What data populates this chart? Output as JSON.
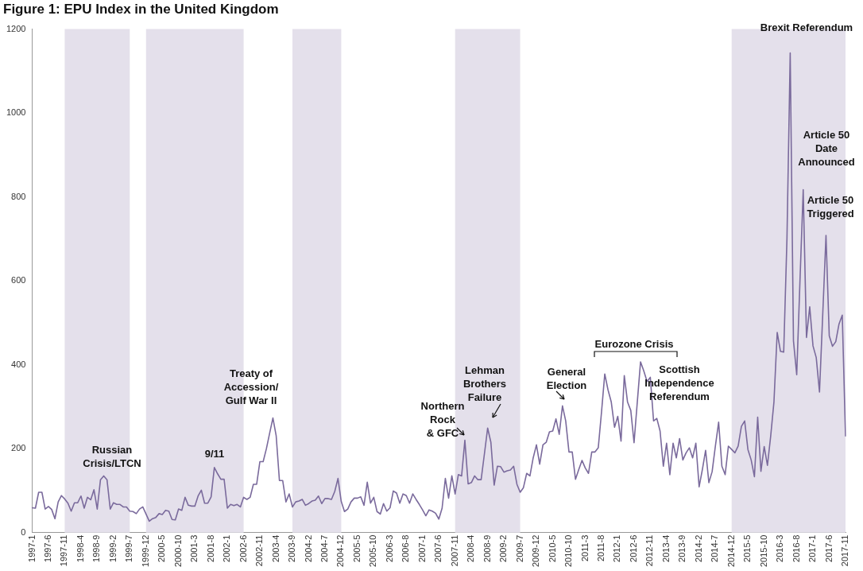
{
  "chart_data": {
    "type": "line",
    "title": "Figure 1: EPU Index in the United Kingdom",
    "categories": [
      "1997-1",
      null,
      null,
      null,
      null,
      "1997-6",
      null,
      null,
      null,
      null,
      "1997-11",
      null,
      null,
      null,
      null,
      "1998-4",
      null,
      null,
      null,
      null,
      "1998-9",
      null,
      null,
      null,
      null,
      "1999-2",
      null,
      null,
      null,
      null,
      "1999-7",
      null,
      null,
      null,
      null,
      "1999-12",
      null,
      null,
      null,
      null,
      "2000-5",
      null,
      null,
      null,
      null,
      "2000-10",
      null,
      null,
      null,
      null,
      "2001-3",
      null,
      null,
      null,
      null,
      "2001-8",
      null,
      null,
      null,
      null,
      "2002-1",
      null,
      null,
      null,
      null,
      "2002-6",
      null,
      null,
      null,
      null,
      "2002-11",
      null,
      null,
      null,
      null,
      "2003-4",
      null,
      null,
      null,
      null,
      "2003-9",
      null,
      null,
      null,
      null,
      "2004-2",
      null,
      null,
      null,
      null,
      "2004-7",
      null,
      null,
      null,
      null,
      "2004-12",
      null,
      null,
      null,
      null,
      "2005-5",
      null,
      null,
      null,
      null,
      "2005-10",
      null,
      null,
      null,
      null,
      "2006-3",
      null,
      null,
      null,
      null,
      "2006-8",
      null,
      null,
      null,
      null,
      "2007-1",
      null,
      null,
      null,
      null,
      "2007-6",
      null,
      null,
      null,
      null,
      "2007-11",
      null,
      null,
      null,
      null,
      "2008-4",
      null,
      null,
      null,
      null,
      "2008-9",
      null,
      null,
      null,
      null,
      "2009-2",
      null,
      null,
      null,
      null,
      "2009-7",
      null,
      null,
      null,
      null,
      "2009-12",
      null,
      null,
      null,
      null,
      "2010-5",
      null,
      null,
      null,
      null,
      "2010-10",
      null,
      null,
      null,
      null,
      "2011-3",
      null,
      null,
      null,
      null,
      "2011-8",
      null,
      null,
      null,
      null,
      "2012-1",
      null,
      null,
      null,
      null,
      "2012-6",
      null,
      null,
      null,
      null,
      "2012-11",
      null,
      null,
      null,
      null,
      "2013-4",
      null,
      null,
      null,
      null,
      "2013-9",
      null,
      null,
      null,
      null,
      "2014-2",
      null,
      null,
      null,
      null,
      "2014-7",
      null,
      null,
      null,
      null,
      "2014-12",
      null,
      null,
      null,
      null,
      "2015-5",
      null,
      null,
      null,
      null,
      "2015-10",
      null,
      null,
      null,
      null,
      "2016-3",
      null,
      null,
      null,
      null,
      "2016-8",
      null,
      null,
      null,
      null,
      "2017-1",
      null,
      null,
      null,
      null,
      "2017-6",
      null,
      null,
      null,
      null,
      "2017-11"
    ],
    "series": [
      {
        "color": "#7a6a9c",
        "values": [
          59,
          58,
          96,
          96,
          56,
          62,
          55,
          33,
          73,
          88,
          80,
          70,
          51,
          71,
          71,
          87,
          58,
          84,
          78,
          102,
          56,
          126,
          135,
          126,
          56,
          71,
          67,
          67,
          61,
          61,
          51,
          50,
          45,
          56,
          61,
          44,
          27,
          33,
          36,
          45,
          43,
          53,
          51,
          31,
          30,
          56,
          53,
          84,
          65,
          63,
          63,
          87,
          101,
          70,
          70,
          85,
          155,
          140,
          127,
          127,
          58,
          67,
          64,
          67,
          61,
          84,
          79,
          84,
          115,
          115,
          169,
          169,
          200,
          237,
          273,
          231,
          124,
          124,
          73,
          92,
          61,
          73,
          75,
          79,
          65,
          69,
          75,
          77,
          87,
          69,
          81,
          81,
          79,
          98,
          129,
          74,
          50,
          56,
          73,
          82,
          82,
          85,
          65,
          120,
          70,
          84,
          50,
          44,
          69,
          51,
          59,
          99,
          94,
          70,
          92,
          88,
          70,
          92,
          79,
          67,
          54,
          40,
          54,
          51,
          46,
          32,
          58,
          129,
          82,
          135,
          92,
          138,
          135,
          220,
          116,
          119,
          135,
          126,
          126,
          187,
          249,
          215,
          113,
          158,
          157,
          144,
          147,
          149,
          158,
          115,
          96,
          107,
          141,
          135,
          178,
          209,
          163,
          209,
          215,
          240,
          242,
          271,
          234,
          302,
          266,
          192,
          192,
          127,
          150,
          172,
          154,
          141,
          192,
          192,
          202,
          287,
          378,
          340,
          311,
          251,
          277,
          218,
          374,
          311,
          291,
          214,
          311,
          407,
          385,
          360,
          370,
          266,
          272,
          242,
          158,
          213,
          138,
          213,
          178,
          224,
          173,
          190,
          202,
          178,
          213,
          109,
          150,
          196,
          119,
          145,
          206,
          263,
          158,
          138,
          206,
          198,
          190,
          206,
          253,
          266,
          198,
          173,
          133,
          275,
          146,
          205,
          160,
          230,
          311,
          477,
          432,
          430,
          700,
          1143,
          457,
          376,
          600,
          817,
          465,
          538,
          445,
          417,
          335,
          520,
          708,
          469,
          444,
          455,
          497,
          518,
          230
        ]
      }
    ],
    "ylim": [
      0,
      1200
    ],
    "yticks": [
      0,
      200,
      400,
      600,
      800,
      1000,
      1200
    ],
    "legend": false,
    "bands": [
      {
        "axis": "x",
        "from": "1997-11",
        "to": "1999-7",
        "color": "#e4e0eb"
      },
      {
        "axis": "x",
        "from": "1999-12",
        "to": "2002-6",
        "color": "#e4e0eb"
      },
      {
        "axis": "x",
        "from": "2003-9",
        "to": "2004-12",
        "color": "#e4e0eb"
      },
      {
        "axis": "x",
        "from": "2007-11",
        "to": "2009-7",
        "color": "#e4e0eb"
      },
      {
        "axis": "x",
        "from": "2014-12",
        "to": "2017-11",
        "color": "#e4e0eb"
      }
    ],
    "annotations": [
      "Russian\nCrisis/LTCN",
      "9/11",
      "Treaty of\nAccession/\nGulf War II",
      "Northern\nRock\n& GFC",
      "Lehman\nBrothers\nFailure",
      "General\nElection",
      "Eurozone Crisis",
      "Scottish\nIndependence\nReferendum",
      "Brexit Referendum",
      "Article 50\nDate\nAnnounced",
      "Article 50\nTriggered"
    ]
  }
}
